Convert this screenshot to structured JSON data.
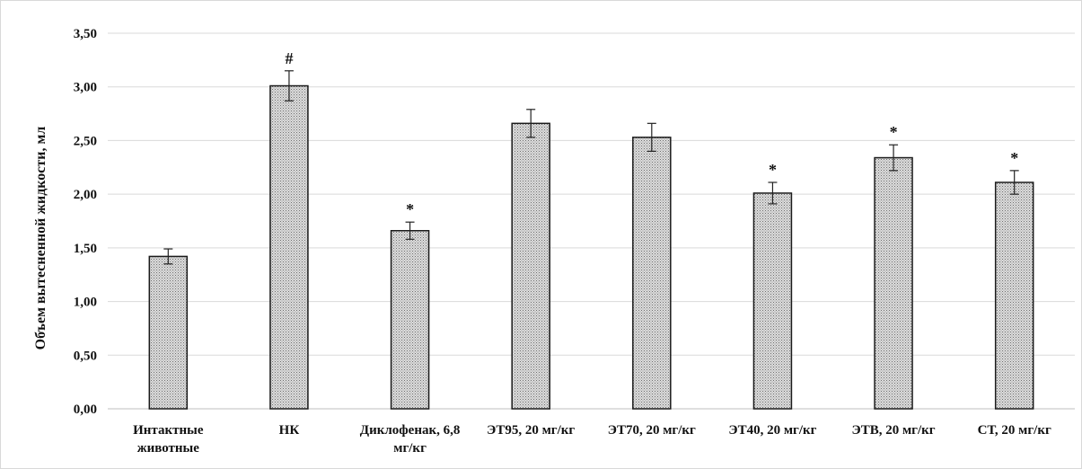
{
  "chart_data": {
    "type": "bar",
    "title": "",
    "xlabel": "",
    "ylabel": "Объем вытесненной  жидкости, мл",
    "ylim": [
      0,
      3.5
    ],
    "yticks": [
      "0,00",
      "0,50",
      "1,00",
      "1,50",
      "2,00",
      "2,50",
      "3,00",
      "3,50"
    ],
    "grid": true,
    "legend": "none",
    "categories": [
      [
        "Интактные",
        "животные"
      ],
      [
        "НК"
      ],
      [
        "Диклофенак, 6,8",
        "мг/кг"
      ],
      [
        "ЭТ95, 20 мг/кг"
      ],
      [
        "ЭТ70, 20 мг/кг"
      ],
      [
        "ЭТ40, 20  мг/кг"
      ],
      [
        "ЭТВ, 20  мг/кг"
      ],
      [
        "СТ, 20  мг/кг"
      ]
    ],
    "values": [
      1.42,
      3.01,
      1.66,
      2.66,
      2.53,
      2.01,
      2.34,
      2.11
    ],
    "errors": [
      0.07,
      0.14,
      0.08,
      0.13,
      0.13,
      0.1,
      0.12,
      0.11
    ],
    "annotations": [
      "",
      "#",
      "*",
      "",
      "",
      "*",
      "*",
      "*"
    ],
    "colors": {
      "bar_fill": "#d4d4d4",
      "bar_dots": "#7a7a7a",
      "bar_stroke": "#1a1a1a",
      "grid": "#d9d9d9"
    }
  }
}
